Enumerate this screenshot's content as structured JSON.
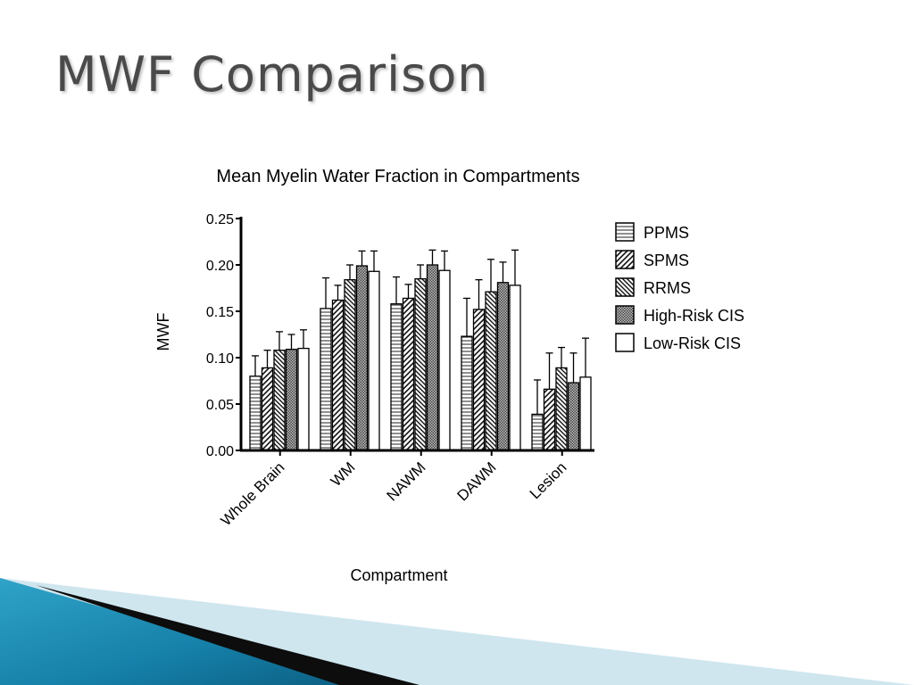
{
  "slide": {
    "title": "MWF Comparison"
  },
  "colors": {
    "title_text": "#4a4a4a",
    "axis": "#000000",
    "deco_teal": "#1a8ab0",
    "deco_light": "#cfe6ef",
    "deco_dark": "#0d0d0d"
  },
  "chart_data": {
    "type": "bar",
    "title": "Mean Myelin Water Fraction in Compartments",
    "xlabel": "Compartment",
    "ylabel": "MWF",
    "ylim": [
      0,
      0.25
    ],
    "yticks": [
      "0.00",
      "0.05",
      "0.10",
      "0.15",
      "0.20",
      "0.25"
    ],
    "grid": false,
    "legend_position": "right",
    "error_bars": "upper",
    "categories": [
      "Whole Brain",
      "WM",
      "NAWM",
      "DAWM",
      "Lesion"
    ],
    "series": [
      {
        "name": "PPMS",
        "pattern": "horizontal-lines",
        "values": [
          0.08,
          0.153,
          0.158,
          0.123,
          0.039
        ],
        "errors": [
          0.022,
          0.033,
          0.029,
          0.041,
          0.037
        ]
      },
      {
        "name": "SPMS",
        "pattern": "diagonal-lines",
        "values": [
          0.089,
          0.162,
          0.164,
          0.152,
          0.066
        ],
        "errors": [
          0.019,
          0.016,
          0.015,
          0.032,
          0.039
        ]
      },
      {
        "name": "RRMS",
        "pattern": "back-diagonal-lines",
        "values": [
          0.108,
          0.184,
          0.185,
          0.171,
          0.089
        ],
        "errors": [
          0.02,
          0.016,
          0.015,
          0.035,
          0.022
        ]
      },
      {
        "name": "High-Risk CIS",
        "pattern": "checker",
        "values": [
          0.109,
          0.199,
          0.2,
          0.181,
          0.073
        ],
        "errors": [
          0.016,
          0.016,
          0.016,
          0.022,
          0.032
        ]
      },
      {
        "name": "Low-Risk CIS",
        "pattern": "solid-white",
        "values": [
          0.11,
          0.193,
          0.194,
          0.178,
          0.079
        ],
        "errors": [
          0.02,
          0.022,
          0.021,
          0.038,
          0.042
        ]
      }
    ]
  }
}
